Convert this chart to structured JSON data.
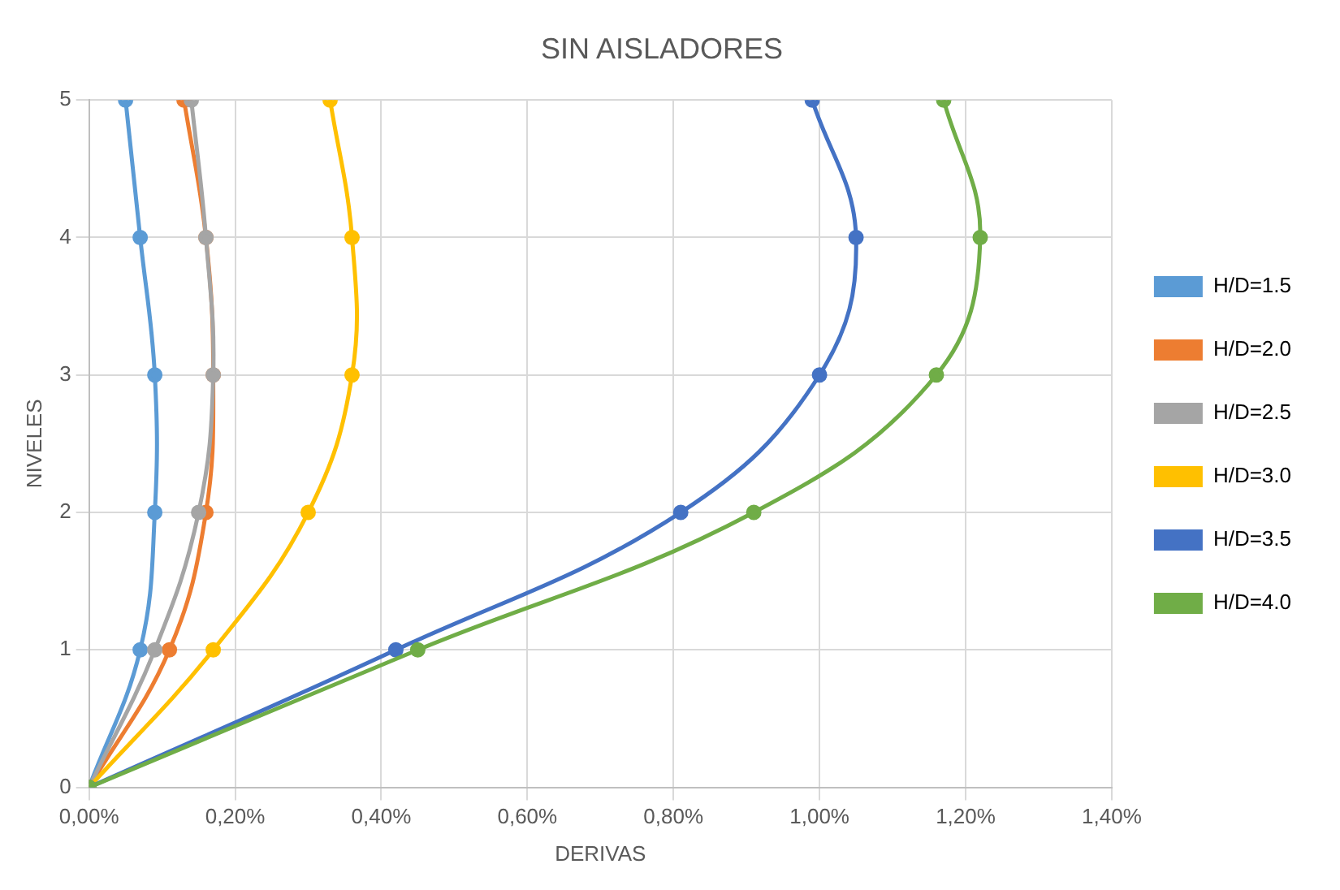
{
  "chart_data": {
    "type": "line",
    "title": "SIN AISLADORES",
    "xlabel": "DERIVAS",
    "ylabel": "NIVELES",
    "series": [
      {
        "name": "H/D=1.5",
        "color": "#5b9bd5",
        "x": [
          0,
          0.07,
          0.09,
          0.09,
          0.07,
          0.05
        ],
        "values": [
          0,
          1,
          2,
          3,
          4,
          5
        ]
      },
      {
        "name": "H/D=2.0",
        "color": "#ed7d31",
        "x": [
          0,
          0.11,
          0.16,
          0.17,
          0.16,
          0.13
        ],
        "values": [
          0,
          1,
          2,
          3,
          4,
          5
        ]
      },
      {
        "name": "H/D=2.5",
        "color": "#a5a5a5",
        "x": [
          0,
          0.09,
          0.15,
          0.17,
          0.16,
          0.14
        ],
        "values": [
          0,
          1,
          2,
          3,
          4,
          5
        ]
      },
      {
        "name": "H/D=3.0",
        "color": "#ffc000",
        "x": [
          0,
          0.17,
          0.3,
          0.36,
          0.36,
          0.33
        ],
        "values": [
          0,
          1,
          2,
          3,
          4,
          5
        ]
      },
      {
        "name": "H/D=3.5",
        "color": "#4472c4",
        "x": [
          0,
          0.42,
          0.81,
          1.0,
          1.05,
          0.99
        ],
        "values": [
          0,
          1,
          2,
          3,
          4,
          5
        ]
      },
      {
        "name": "H/D=4.0",
        "color": "#70ad47",
        "x": [
          0,
          0.45,
          0.91,
          1.16,
          1.22,
          1.17
        ],
        "values": [
          0,
          1,
          2,
          3,
          4,
          5
        ]
      }
    ],
    "xlim": [
      0,
      1.4
    ],
    "xticks": [
      {
        "value": 0,
        "label": "0,00%"
      },
      {
        "value": 0.2,
        "label": "0,20%"
      },
      {
        "value": 0.4,
        "label": "0,40%"
      },
      {
        "value": 0.6,
        "label": "0,60%"
      },
      {
        "value": 0.8,
        "label": "0,80%"
      },
      {
        "value": 1.0,
        "label": "1,00%"
      },
      {
        "value": 1.2,
        "label": "1,20%"
      },
      {
        "value": 1.4,
        "label": "1,40%"
      }
    ],
    "ylim": [
      0,
      5
    ],
    "yticks": [
      0,
      1,
      2,
      3,
      4,
      5
    ],
    "grid": true,
    "legend": "right",
    "marker": "circle",
    "line_style": "solid"
  }
}
